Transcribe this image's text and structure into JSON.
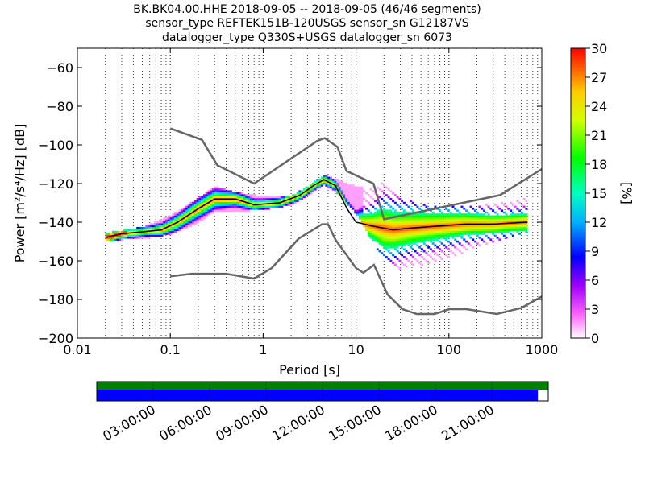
{
  "chart_data": {
    "type": "heatmap",
    "title_lines": [
      "BK.BK04.00.HHE   2018-09-05 -- 2018-09-05  (46/46 segments)",
      "sensor_type REFTEK151B-120USGS sensor_sn G12187VS",
      "datalogger_type Q330S+USGS datalogger_sn 6073"
    ],
    "xlabel": "Period [s]",
    "ylabel": "Power [m²/s⁴/Hz] [dB]",
    "x_scale": "log",
    "xlim": [
      0.01,
      1000
    ],
    "ylim": [
      -200,
      -50
    ],
    "x_ticks": [
      0.01,
      0.1,
      1,
      10,
      100,
      1000
    ],
    "x_tick_labels": [
      "0.01",
      "0.1",
      "1",
      "10",
      "100",
      "1000"
    ],
    "y_ticks": [
      -200,
      -180,
      -160,
      -140,
      -120,
      -100,
      -80,
      -60
    ],
    "y_tick_labels": [
      "−200",
      "−180",
      "−160",
      "−140",
      "−120",
      "−100",
      "−80",
      "−60"
    ],
    "grid": "dotted vertical lines at decade subdivisions",
    "colorbar": {
      "label": "[%]",
      "range": [
        0,
        30
      ],
      "ticks": [
        0,
        3,
        6,
        9,
        12,
        15,
        18,
        21,
        24,
        27,
        30
      ]
    },
    "noise_models": {
      "high": {
        "x": [
          0.1,
          0.22,
          0.32,
          0.8,
          3.8,
          4.6,
          6.3,
          7.9,
          15.4,
          20,
          354.8,
          1000
        ],
        "y": [
          -91.5,
          -97.4,
          -110.5,
          -120.0,
          -98.0,
          -96.5,
          -101.0,
          -113.5,
          -120.0,
          -138.5,
          -126.0,
          -112.5
        ]
      },
      "low": {
        "x": [
          0.1,
          0.17,
          0.4,
          0.8,
          1.24,
          2.4,
          4.3,
          5.0,
          6.0,
          10.0,
          12.0,
          15.6,
          21.9,
          31.6,
          45.0,
          70.0,
          101.0,
          154.0,
          328.0,
          600.0,
          1000
        ],
        "y": [
          -168.0,
          -166.7,
          -166.7,
          -169.2,
          -163.7,
          -148.6,
          -141.1,
          -141.1,
          -149.0,
          -163.8,
          -166.2,
          -162.1,
          -177.5,
          -185.0,
          -187.5,
          -187.5,
          -185.0,
          -185.0,
          -187.5,
          -184.4,
          -178.5
        ]
      }
    },
    "psd_mode": {
      "x": [
        0.02,
        0.03,
        0.05,
        0.08,
        0.12,
        0.2,
        0.3,
        0.5,
        0.8,
        1.5,
        2.5,
        3.5,
        4.5,
        6,
        8,
        10,
        15,
        25,
        40,
        80,
        150,
        300,
        700
      ],
      "y": [
        -148,
        -146,
        -145,
        -144,
        -140,
        -133,
        -128,
        -128,
        -131,
        -130,
        -126,
        -121,
        -118,
        -121,
        -133,
        -140,
        -142,
        -144,
        -143,
        -142,
        -141,
        -141,
        -140
      ]
    },
    "psd_spread": {
      "x": [
        0.02,
        0.05,
        0.1,
        0.2,
        0.3,
        0.5,
        1,
        2,
        3,
        4.5,
        6,
        10,
        15,
        20,
        30,
        60,
        100,
        200,
        400,
        700
      ],
      "upper": [
        -146,
        -143,
        -137,
        -128,
        -122,
        -125,
        -127,
        -127,
        -122,
        -116,
        -118,
        -122,
        -123,
        -118,
        -128,
        -132,
        -132,
        -132,
        -130,
        -128
      ],
      "lower": [
        -149,
        -148,
        -146,
        -140,
        -134,
        -134,
        -133,
        -131,
        -126,
        -120,
        -124,
        -135,
        -150,
        -160,
        -164,
        -161,
        -158,
        -153,
        -148,
        -146
      ]
    },
    "timeline": {
      "tick_labels": [
        "03:00:00",
        "06:00:00",
        "09:00:00",
        "12:00:00",
        "15:00:00",
        "18:00:00",
        "21:00:00"
      ],
      "tick_hours": [
        3,
        6,
        9,
        12,
        15,
        18,
        21
      ],
      "range_hours": [
        0,
        24
      ],
      "data_coverage_fraction": 1.0,
      "psd_coverage_fraction": 0.977,
      "colors": {
        "data": "#008000",
        "psd": "#0000ff"
      }
    }
  }
}
